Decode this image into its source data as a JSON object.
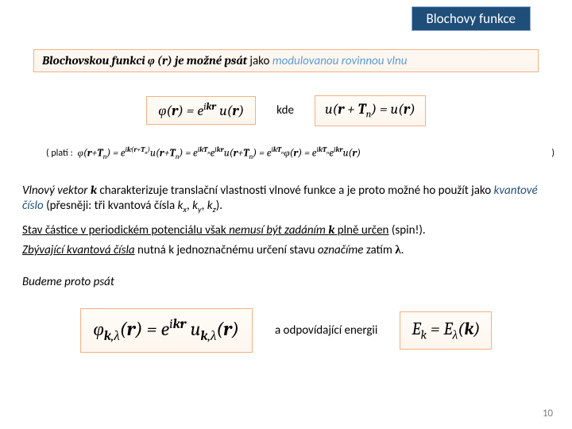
{
  "title": "Blochovy funkce",
  "statement": {
    "pre": "Blochovskou funkci ",
    "phi": "φ (r)",
    "mid": " je možné psát ",
    "tail": "jako ",
    "mod": "modulovanou rovinnou vlnu"
  },
  "eq1": "φ(r) = e^{i k·r} u(r)",
  "kde": "kde",
  "eq2": "u(r + Tₙ) = u(r)",
  "plati_label": "( platí :",
  "plati_proof": "φ(r + Tₙ) = e^{i k·(r+Tₙ)} u(r + Tₙ) = e^{i k·Tₙ} e^{i k·r} u(r + Tₙ) = e^{i k·Tₙ} φ(r) = e^{i k·Tₙ} e^{i k·r} u(r)",
  "plati_close": ")",
  "p1": {
    "a": "Vlnový vektor ",
    "k": "k",
    "b": "  charakterizuje translační vlastnosti vlnové funkce a je proto možné ho použít jako ",
    "kvant": "kvantové číslo",
    "c": " (přesněji: tři kvantová čísla ",
    "kx": "kₓ",
    "ky": "k_y",
    "kz": "k_z",
    "d": ")."
  },
  "p2": {
    "a": "Stav částice v periodickém potenciálu však ",
    "nem": "nemusí být zadáním",
    "b": " ",
    "k": "k",
    "c": "  plně určen",
    "spin": " (spin!)."
  },
  "p3": {
    "a": "Zbývající kvantová čísla",
    "b": " nutná k jednoznačnému určení stavu ",
    "ozn": "označíme",
    "c": " zatím ",
    "lam": "λ",
    "d": "."
  },
  "p4": "Budeme proto psát",
  "eqbig": "φ_{k,λ}(r) = e^{i k·r} u_{k,λ}(r)",
  "midlbl": "a odpovídající energii",
  "eqE": "E_k = E_λ(k)",
  "page": "10",
  "colors": {
    "titlebg": "#1f4e79",
    "box_border": "#f4b183",
    "blue": "#5b9bd5"
  }
}
